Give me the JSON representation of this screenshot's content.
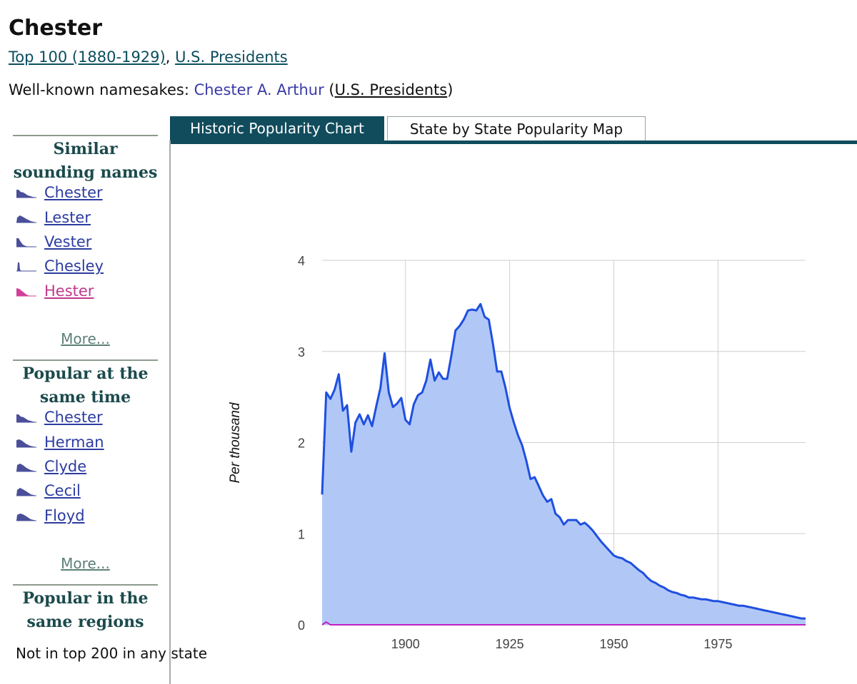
{
  "page": {
    "title": "Chester",
    "categories": [
      "Top 100 (1880-1929)",
      "U.S. Presidents"
    ],
    "category_separator": ", ",
    "namesakes_label": "Well-known namesakes: ",
    "namesake_person": "Chester A. Arthur",
    "namesake_category": "U.S. Presidents"
  },
  "sidebar": {
    "similar": {
      "heading": "Similar sounding names",
      "items": [
        {
          "label": "Chester",
          "icon": "popularity-sparkline-icon",
          "color": "#4a4f9a"
        },
        {
          "label": "Lester",
          "icon": "popularity-sparkline-icon",
          "color": "#4a4f9a"
        },
        {
          "label": "Vester",
          "icon": "popularity-sparkline-icon",
          "color": "#4a4f9a"
        },
        {
          "label": "Chesley",
          "icon": "popularity-sparkline-icon",
          "color": "#4a4f9a"
        },
        {
          "label": "Hester",
          "icon": "popularity-sparkline-icon",
          "color": "#d0409a"
        }
      ],
      "more": "More..."
    },
    "same_time": {
      "heading": "Popular at the same time",
      "items": [
        {
          "label": "Chester",
          "icon": "popularity-sparkline-icon",
          "color": "#4a4f9a"
        },
        {
          "label": "Herman",
          "icon": "popularity-sparkline-icon",
          "color": "#4a4f9a"
        },
        {
          "label": "Clyde",
          "icon": "popularity-sparkline-icon",
          "color": "#4a4f9a"
        },
        {
          "label": "Cecil",
          "icon": "popularity-sparkline-icon",
          "color": "#4a4f9a"
        },
        {
          "label": "Floyd",
          "icon": "popularity-sparkline-icon",
          "color": "#4a4f9a"
        }
      ],
      "more": "More..."
    },
    "regions": {
      "heading": "Popular in the same regions",
      "text": "Not in top 200 in any state"
    }
  },
  "tabs": [
    {
      "label": "Historic Popularity Chart",
      "active": true
    },
    {
      "label": "State by State Popularity Map",
      "active": false
    }
  ],
  "colors": {
    "male_line": "#1f4fe0",
    "male_fill": "#b1c8f7",
    "female_line": "#c020c0",
    "tab_active": "#114c5d"
  },
  "chart_data": {
    "type": "area",
    "ylabel": "Per thousand",
    "xlim": [
      1880,
      1996
    ],
    "ylim": [
      0,
      4
    ],
    "x_ticks": [
      1900,
      1925,
      1950,
      1975
    ],
    "y_ticks": [
      0,
      1,
      2,
      3,
      4
    ],
    "grid": true,
    "series": [
      {
        "color": "#1f4fe0",
        "x": [
          1880,
          1881,
          1882,
          1883,
          1884,
          1885,
          1886,
          1887,
          1888,
          1889,
          1890,
          1891,
          1892,
          1893,
          1894,
          1895,
          1896,
          1897,
          1898,
          1899,
          1900,
          1901,
          1902,
          1903,
          1904,
          1905,
          1906,
          1907,
          1908,
          1909,
          1910,
          1911,
          1912,
          1913,
          1914,
          1915,
          1916,
          1917,
          1918,
          1919,
          1920,
          1921,
          1922,
          1923,
          1924,
          1925,
          1926,
          1927,
          1928,
          1929,
          1930,
          1931,
          1932,
          1933,
          1934,
          1935,
          1936,
          1937,
          1938,
          1939,
          1940,
          1941,
          1942,
          1943,
          1944,
          1945,
          1946,
          1947,
          1948,
          1949,
          1950,
          1951,
          1952,
          1953,
          1954,
          1955,
          1956,
          1957,
          1958,
          1959,
          1960,
          1961,
          1962,
          1963,
          1964,
          1965,
          1966,
          1967,
          1968,
          1969,
          1970,
          1971,
          1972,
          1973,
          1974,
          1975,
          1976,
          1977,
          1978,
          1979,
          1980,
          1981,
          1982,
          1983,
          1984,
          1985,
          1986,
          1987,
          1988,
          1989,
          1990,
          1991,
          1992,
          1993,
          1994,
          1995,
          1996
        ],
        "y": [
          1.43,
          2.55,
          2.48,
          2.58,
          2.75,
          2.35,
          2.41,
          1.9,
          2.22,
          2.31,
          2.2,
          2.3,
          2.18,
          2.4,
          2.6,
          2.98,
          2.55,
          2.39,
          2.43,
          2.49,
          2.25,
          2.2,
          2.42,
          2.52,
          2.55,
          2.68,
          2.91,
          2.68,
          2.77,
          2.7,
          2.7,
          2.95,
          3.23,
          3.28,
          3.35,
          3.45,
          3.46,
          3.45,
          3.52,
          3.38,
          3.35,
          3.08,
          2.78,
          2.78,
          2.6,
          2.38,
          2.22,
          2.08,
          1.97,
          1.8,
          1.6,
          1.62,
          1.52,
          1.42,
          1.35,
          1.38,
          1.22,
          1.18,
          1.1,
          1.15,
          1.15,
          1.15,
          1.1,
          1.12,
          1.08,
          1.03,
          0.97,
          0.91,
          0.86,
          0.81,
          0.76,
          0.74,
          0.73,
          0.7,
          0.68,
          0.64,
          0.6,
          0.57,
          0.52,
          0.48,
          0.46,
          0.43,
          0.41,
          0.38,
          0.36,
          0.35,
          0.33,
          0.32,
          0.3,
          0.3,
          0.29,
          0.28,
          0.28,
          0.27,
          0.26,
          0.26,
          0.25,
          0.24,
          0.23,
          0.22,
          0.21,
          0.21,
          0.2,
          0.19,
          0.18,
          0.17,
          0.16,
          0.15,
          0.14,
          0.13,
          0.12,
          0.11,
          0.1,
          0.09,
          0.08,
          0.07,
          0.07
        ]
      },
      {
        "color": "#c020c0",
        "x": [
          1880,
          1881,
          1882,
          1883,
          1996
        ],
        "y": [
          0.0,
          0.03,
          0.0,
          0.0,
          0.0
        ]
      }
    ]
  }
}
